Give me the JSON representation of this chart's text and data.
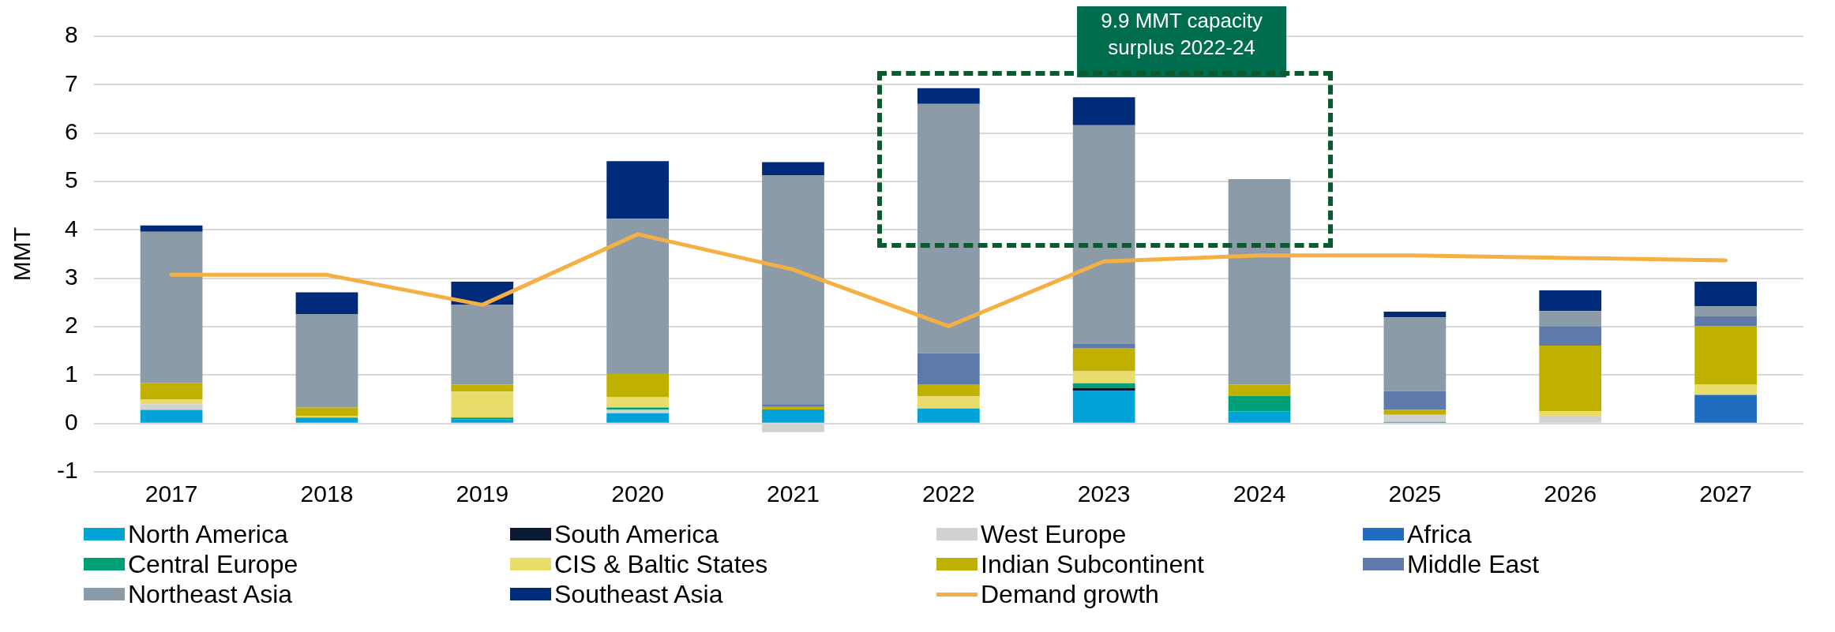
{
  "chart_data": {
    "type": "bar",
    "stacked": true,
    "ylabel": "MMT",
    "categories": [
      "2017",
      "2018",
      "2019",
      "2020",
      "2021",
      "2022",
      "2023",
      "2024",
      "2025",
      "2026",
      "2027"
    ],
    "series": [
      {
        "name": "North America",
        "color": "#00a3d7",
        "values": [
          0.28,
          0.12,
          0.08,
          0.21,
          0.29,
          0.31,
          0.67,
          0.25,
          0.03,
          0,
          0
        ]
      },
      {
        "name": "South America",
        "color": "#0a1a33",
        "values": [
          0,
          0,
          0,
          0,
          0,
          0,
          0.06,
          0,
          0,
          0,
          0
        ]
      },
      {
        "name": "West Europe",
        "color": "#d0d2d0",
        "values": [
          0.12,
          0,
          0,
          0.08,
          -0.18,
          0,
          0,
          0,
          0.15,
          0.14,
          0
        ]
      },
      {
        "name": "Africa",
        "color": "#1f6dc0",
        "values": [
          0,
          0,
          0,
          0,
          0,
          0,
          0,
          0,
          0,
          0,
          0.59
        ]
      },
      {
        "name": "Central Europe",
        "color": "#00a077",
        "values": [
          0,
          0,
          0.04,
          0.04,
          0,
          0,
          0.1,
          0.32,
          0,
          0,
          0
        ]
      },
      {
        "name": "CIS & Baltic States",
        "color": "#e8dc6a",
        "values": [
          0.1,
          0.03,
          0.54,
          0.21,
          0,
          0.25,
          0.25,
          0,
          0,
          0.11,
          0.21
        ]
      },
      {
        "name": "Indian Subcontinent",
        "color": "#c0b000",
        "values": [
          0.34,
          0.18,
          0.14,
          0.5,
          0.05,
          0.25,
          0.48,
          0.23,
          0.1,
          1.36,
          1.21
        ]
      },
      {
        "name": "Middle East",
        "color": "#5e7aab",
        "values": [
          0,
          0,
          0,
          0,
          0.06,
          0.64,
          0.08,
          0,
          0.39,
          0.4,
          0.2
        ]
      },
      {
        "name": "Northeast Asia",
        "color": "#8c9ba8",
        "values": [
          3.12,
          1.93,
          1.65,
          3.19,
          4.73,
          5.15,
          4.52,
          4.25,
          1.52,
          0.31,
          0.21
        ]
      },
      {
        "name": "Southeast Asia",
        "color": "#002b7a",
        "values": [
          0.13,
          0.45,
          0.48,
          1.19,
          0.27,
          0.33,
          0.58,
          0,
          0.12,
          0.43,
          0.51
        ]
      },
      {
        "name": "Demand growth",
        "type": "line",
        "color": "#f5b043",
        "values": [
          3.07,
          3.07,
          2.45,
          3.91,
          3.18,
          2.01,
          3.35,
          3.47,
          3.47,
          3.42,
          3.37
        ]
      }
    ],
    "ylim": [
      -1,
      8
    ],
    "yticks": [
      -1,
      0,
      1,
      2,
      3,
      4,
      5,
      6,
      7,
      8
    ],
    "grid": "y",
    "legend": "bottom",
    "marker": "none",
    "annotations": [
      "9.9 MMT capacity surplus 2022-24"
    ]
  }
}
